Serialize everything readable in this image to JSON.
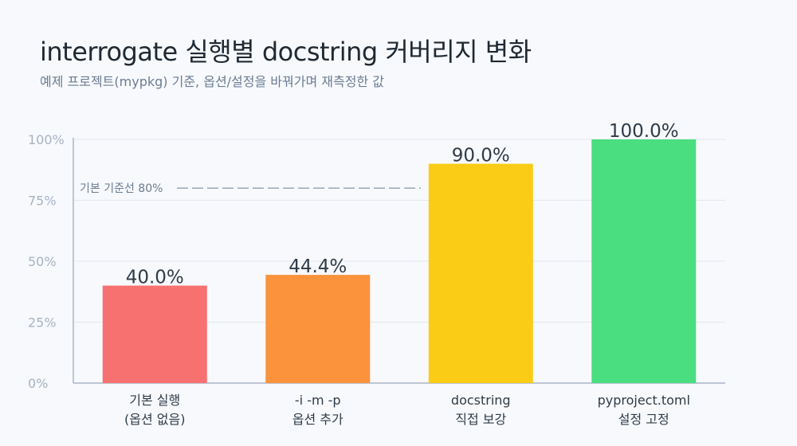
{
  "title": "interrogate 실행별 docstring 커버리지 변화",
  "subtitle": "예제 프로젝트(mypkg) 기준, 옵션/설정을 바꿔가며 재측정한 값",
  "chart_data": {
    "type": "bar",
    "title": "interrogate 실행별 docstring 커버리지 변화",
    "subtitle": "예제 프로젝트(mypkg) 기준, 옵션/설정을 바꿔가며 재측정한 값",
    "xlabel": "",
    "ylabel": "",
    "ylim": [
      0,
      100
    ],
    "yticks": [
      0,
      25,
      50,
      75,
      100
    ],
    "ytick_labels": [
      "0%",
      "25%",
      "50%",
      "75%",
      "100%"
    ],
    "grid": true,
    "categories": [
      [
        "기본 실행",
        "(옵션 없음)"
      ],
      [
        "-i -m -p",
        "옵션 추가"
      ],
      [
        "docstring",
        "직접 보강"
      ],
      [
        "pyproject.toml",
        "설정 고정"
      ]
    ],
    "values": [
      40.0,
      44.4,
      90.0,
      100.0
    ],
    "value_labels": [
      "40.0%",
      "44.4%",
      "90.0%",
      "100.0%"
    ],
    "colors": [
      "#f87171",
      "#fb923c",
      "#facc15",
      "#4ade80"
    ],
    "reference_line": {
      "value": 80,
      "label": "기본 기준선 80%"
    }
  }
}
